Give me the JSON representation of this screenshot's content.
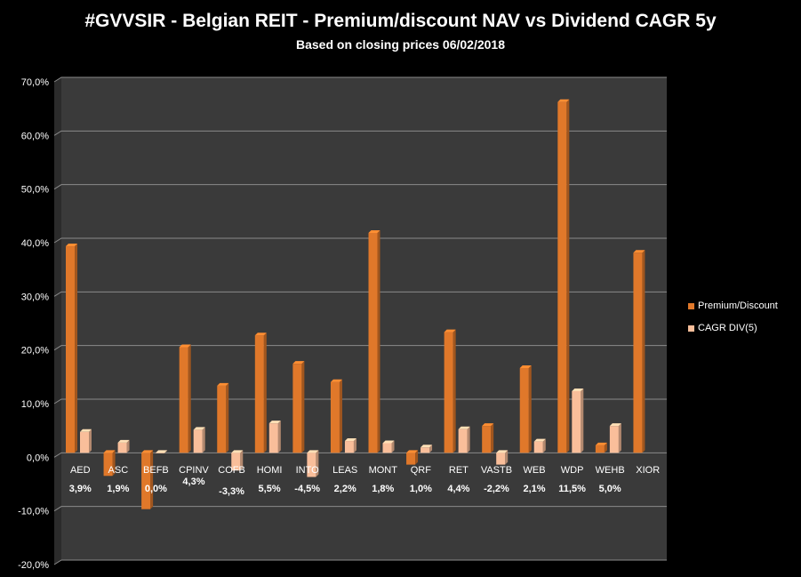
{
  "chart_data": {
    "type": "bar",
    "title": "#GVVSIR - Belgian REIT - Premium/discount NAV vs Dividend CAGR 5y",
    "subtitle": "Based on closing prices 06/02/2018",
    "categories": [
      "AED",
      "ASC",
      "BEFB",
      "CPINV",
      "COFB",
      "HOMI",
      "INTO",
      "LEAS",
      "MONT",
      "QRF",
      "RET",
      "VASTB",
      "WEB",
      "WDP",
      "WEHB",
      "XIOR"
    ],
    "series": [
      {
        "name": "Premium/Discount",
        "color": "#E0782A",
        "values": [
          38.5,
          -4.3,
          -10.5,
          19.7,
          12.5,
          21.9,
          16.6,
          13.2,
          41.0,
          -2.2,
          22.5,
          5.0,
          15.8,
          65.4,
          1.4,
          37.3
        ]
      },
      {
        "name": "CAGR DIV(5)",
        "color": "#F9BE9A",
        "values": [
          3.9,
          1.9,
          0.0,
          4.3,
          -3.3,
          5.5,
          -4.5,
          2.2,
          1.8,
          1.0,
          4.4,
          -2.2,
          2.1,
          11.5,
          5.0,
          null
        ]
      }
    ],
    "data_labels": [
      "3,9%",
      "1,9%",
      "0,0%",
      "4,3%",
      "-3,3%",
      "5,5%",
      "-4,5%",
      "2,2%",
      "1,8%",
      "1,0%",
      "4,4%",
      "-2,2%",
      "2,1%",
      "11,5%",
      "5,0%",
      ""
    ],
    "yticks": [
      "70,0%",
      "60,0%",
      "50,0%",
      "40,0%",
      "30,0%",
      "20,0%",
      "10,0%",
      "0,0%",
      "-10,0%",
      "-20,0%"
    ],
    "ylim": [
      -20,
      70
    ],
    "grid": true,
    "legend_position": "right"
  }
}
